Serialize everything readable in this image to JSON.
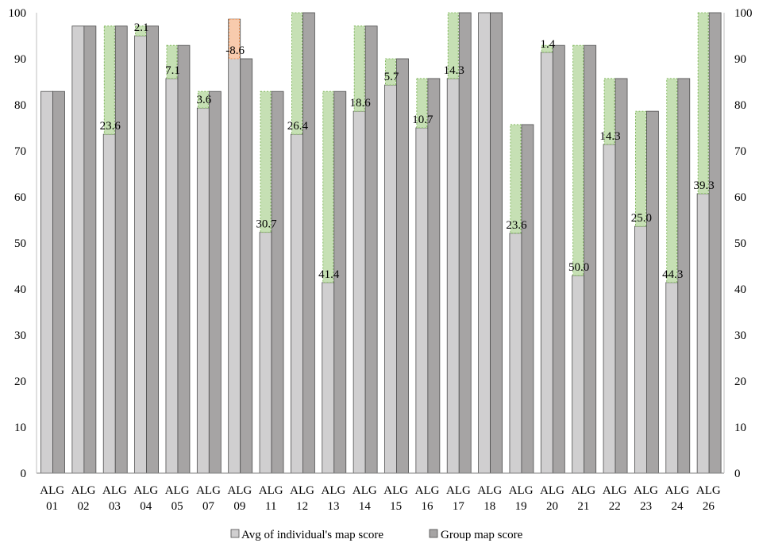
{
  "chart_data": {
    "type": "bar",
    "categories": [
      [
        "ALG",
        "01"
      ],
      [
        "ALG",
        "02"
      ],
      [
        "ALG",
        "03"
      ],
      [
        "ALG",
        "04"
      ],
      [
        "ALG",
        "05"
      ],
      [
        "ALG",
        "07"
      ],
      [
        "ALG",
        "09"
      ],
      [
        "ALG",
        "11"
      ],
      [
        "ALG",
        "12"
      ],
      [
        "ALG",
        "13"
      ],
      [
        "ALG",
        "14"
      ],
      [
        "ALG",
        "15"
      ],
      [
        "ALG",
        "16"
      ],
      [
        "ALG",
        "17"
      ],
      [
        "ALG",
        "18"
      ],
      [
        "ALG",
        "19"
      ],
      [
        "ALG",
        "20"
      ],
      [
        "ALG",
        "21"
      ],
      [
        "ALG",
        "22"
      ],
      [
        "ALG",
        "23"
      ],
      [
        "ALG",
        "24"
      ],
      [
        "ALG",
        "26"
      ]
    ],
    "series": [
      {
        "name": "Avg of individual's map score",
        "color": "#d0cfd0",
        "values": [
          82.9,
          97.1,
          73.6,
          95.0,
          85.7,
          79.3,
          98.6,
          52.3,
          73.6,
          41.4,
          78.6,
          84.3,
          75.0,
          85.7,
          100,
          52.1,
          91.4,
          42.9,
          71.4,
          53.6,
          41.4,
          60.7
        ]
      },
      {
        "name": "Group map score",
        "color": "#a6a4a4",
        "values": [
          82.9,
          97.1,
          97.1,
          97.1,
          92.9,
          82.9,
          90.0,
          82.9,
          100,
          82.9,
          97.1,
          90.0,
          85.7,
          100,
          100,
          75.7,
          92.9,
          92.9,
          85.7,
          78.6,
          85.7,
          100
        ]
      }
    ],
    "difference_labels": [
      "",
      "",
      "23.6",
      "2.1",
      "7.1",
      "3.6",
      "-8.6",
      "30.7",
      "26.4",
      "41.4",
      "18.6",
      "5.7",
      "10.7",
      "14.3",
      "",
      "23.6",
      "1.4",
      "50.0",
      "14.3",
      "25.0",
      "44.3",
      "39.3"
    ],
    "difference_colors": {
      "positive": "#c6e0b4",
      "positive_edge": "#70ad47",
      "negative": "#f8cbad",
      "negative_edge": "#ed7d31"
    },
    "ylim": [
      0,
      100
    ],
    "yticks": [
      0,
      10,
      20,
      30,
      40,
      50,
      60,
      70,
      80,
      90,
      100
    ],
    "secondary_yaxis": true,
    "grid": false,
    "legend_position": "bottom",
    "title": "",
    "xlabel": "",
    "ylabel": ""
  }
}
